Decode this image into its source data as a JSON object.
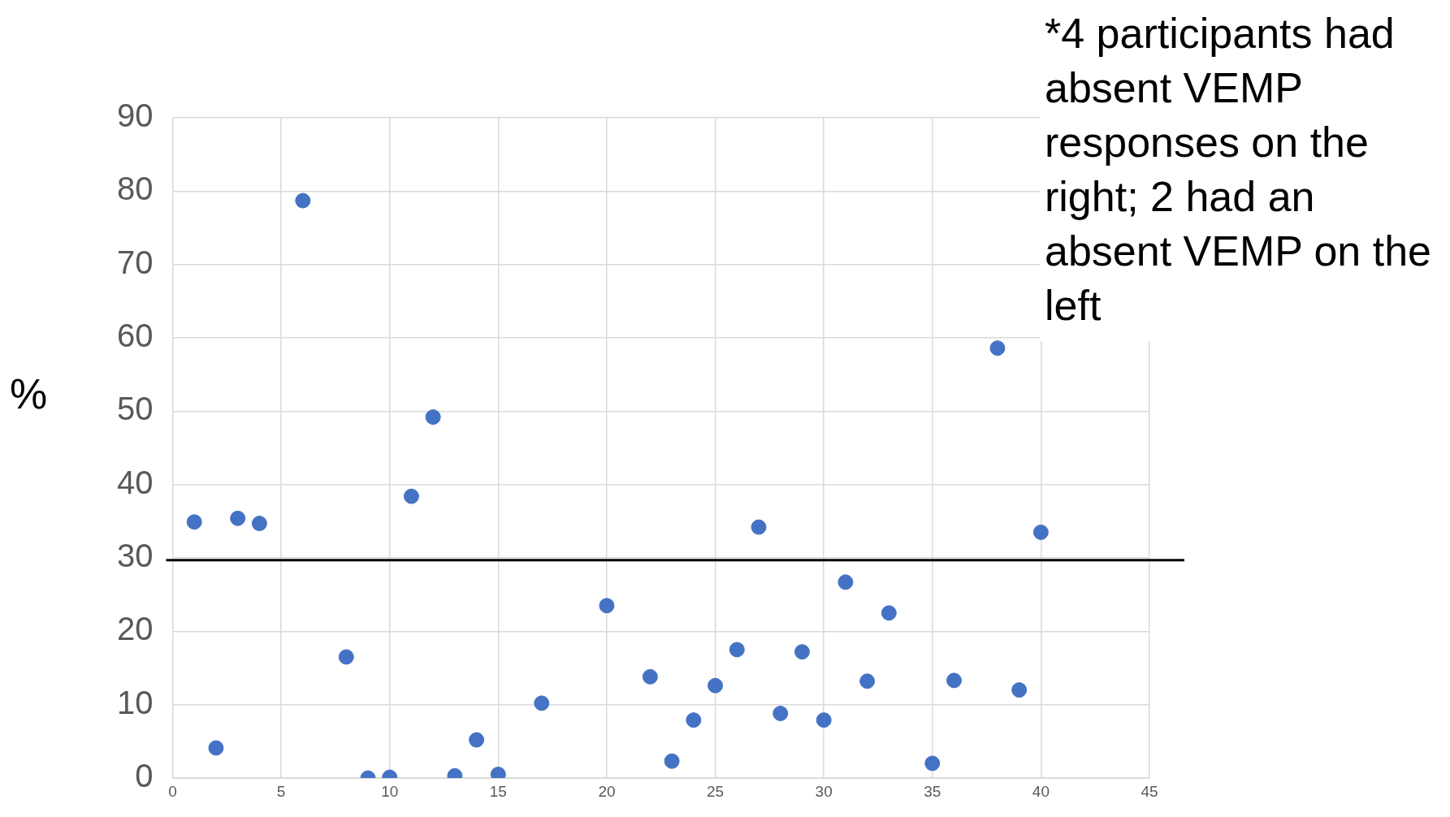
{
  "chart_data": {
    "type": "scatter",
    "ylabel": "%",
    "x": [
      1,
      2,
      3,
      4,
      6,
      8,
      9,
      10,
      11,
      12,
      13,
      14,
      15,
      17,
      20,
      22,
      23,
      24,
      25,
      26,
      27,
      28,
      29,
      30,
      31,
      32,
      33,
      35,
      36,
      38,
      39,
      40
    ],
    "series": [
      {
        "color": "#4472c4",
        "values": [
          34.9,
          4.1,
          35.4,
          34.7,
          78.7,
          16.5,
          0,
          0.1,
          38.4,
          49.2,
          0.3,
          5.2,
          0.5,
          10.2,
          23.5,
          13.8,
          2.3,
          7.9,
          12.6,
          17.5,
          34.2,
          8.8,
          17.2,
          7.9,
          26.7,
          13.2,
          22.5,
          2.0,
          13.3,
          58.6,
          12.0,
          33.5
        ]
      }
    ],
    "xlim": [
      0,
      45
    ],
    "xticks": [
      0,
      5,
      10,
      15,
      20,
      25,
      30,
      35,
      40,
      45
    ],
    "ylim": [
      0,
      90
    ],
    "yticks": [
      0,
      10,
      20,
      30,
      40,
      50,
      60,
      70,
      80,
      90
    ],
    "ref_lines": [
      {
        "axis": "y",
        "value": 29.7,
        "color": "#000000"
      }
    ],
    "annotations": [
      "*4 participants had absent VEMP responses on the right; 2 had an absent VEMP on the left"
    ],
    "grid": true,
    "legend": false,
    "marker": "circle"
  }
}
